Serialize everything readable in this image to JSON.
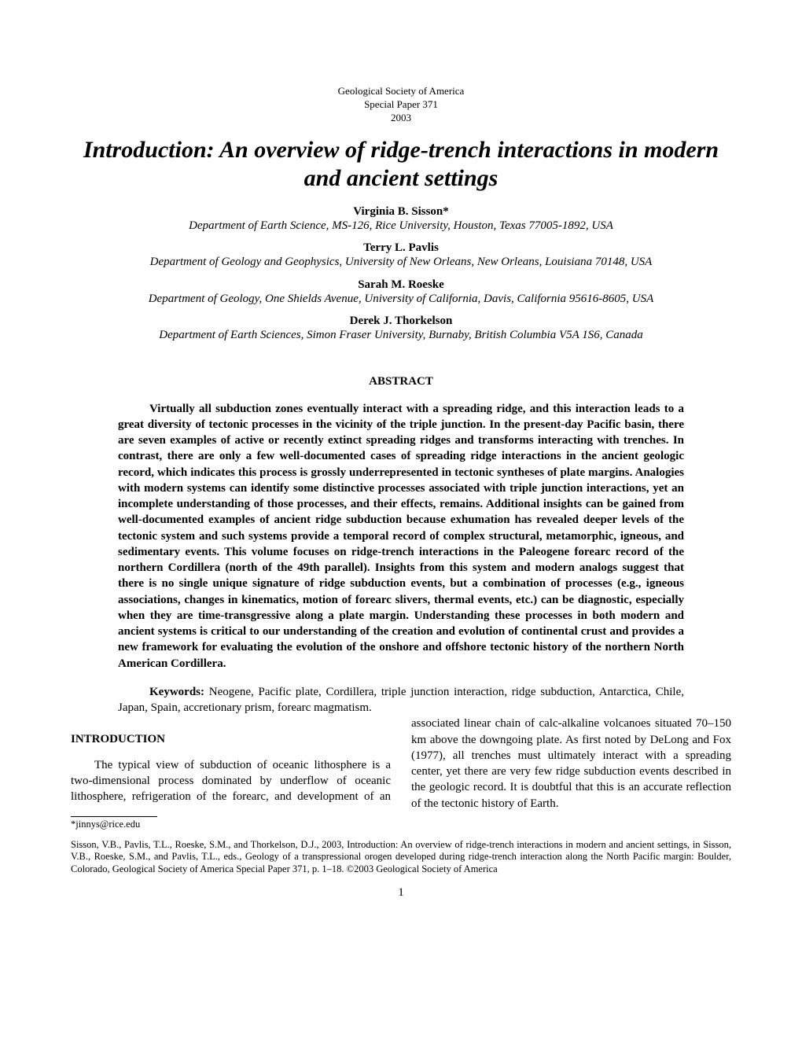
{
  "header": {
    "publisher": "Geological Society of America",
    "series": "Special Paper 371",
    "year": "2003"
  },
  "title": "Introduction: An overview of ridge-trench interactions in modern and ancient settings",
  "authors": [
    {
      "name": "Virginia B. Sisson*",
      "affiliation": "Department of Earth Science, MS-126, Rice University, Houston, Texas 77005-1892, USA"
    },
    {
      "name": "Terry L. Pavlis",
      "affiliation": "Department of Geology and Geophysics, University of New Orleans, New Orleans, Louisiana 70148, USA"
    },
    {
      "name": "Sarah M. Roeske",
      "affiliation": "Department of Geology, One Shields Avenue, University of California, Davis, California 95616-8605, USA"
    },
    {
      "name": "Derek J. Thorkelson",
      "affiliation": "Department of Earth Sciences, Simon Fraser University, Burnaby, British Columbia V5A 1S6, Canada"
    }
  ],
  "abstract": {
    "heading": "ABSTRACT",
    "body": "Virtually all subduction zones eventually interact with a spreading ridge, and this interaction leads to a great diversity of tectonic processes in the vicinity of the triple junction. In the present-day Pacific basin, there are seven examples of active or recently extinct spreading ridges and transforms interacting with trenches. In contrast, there are only a few well-documented cases of spreading ridge interactions in the ancient geologic record, which indicates this process is grossly underrepresented in tectonic syntheses of plate margins. Analogies with modern systems can identify some distinctive processes associated with triple junction interactions, yet an incomplete understanding of those processes, and their effects, remains. Additional insights can be gained from well-documented examples of ancient ridge subduction because exhumation has revealed deeper levels of the tectonic system and such systems provide a temporal record of complex structural, metamorphic, igneous, and sedimentary events. This volume focuses on ridge-trench interactions in the Paleogene forearc record of the northern Cordillera (north of the 49th parallel). Insights from this system and modern analogs suggest that there is no single unique signature of ridge subduction events, but a combination of processes (e.g., igneous associations, changes in kinematics, motion of forearc slivers, thermal events, etc.) can be diagnostic, especially when they are time-transgressive along a plate margin. Understanding these processes in both modern and ancient systems is critical to our understanding of the creation and evolution of continental crust and provides a new framework for evaluating the evolution of the onshore and offshore tectonic history of the northern North American Cordillera."
  },
  "keywords": {
    "label": "Keywords:",
    "text": " Neogene, Pacific plate, Cordillera, triple junction interaction, ridge subduction, Antarctica, Chile, Japan, Spain, accretionary prism, forearc magmatism."
  },
  "introduction": {
    "heading": "INTRODUCTION",
    "para1_left": "The typical view of subduction of oceanic lithosphere is a two-dimensional process dominated by underflow of oceanic lithosphere, refrigeration of the forearc, and development of",
    "para1_right": "an associated linear chain of calc-alkaline volcanoes situated 70–150 km above the downgoing plate. As first noted by DeLong and Fox (1977), all trenches must ultimately interact with a spreading center, yet there are very few ridge subduction events described in the geologic record. It is doubtful that this is an accurate reflection of the tectonic history of Earth."
  },
  "footnote": "*jinnys@rice.edu",
  "citation": "Sisson, V.B., Pavlis, T.L., Roeske, S.M., and Thorkelson, D.J., 2003, Introduction: An overview of ridge-trench interactions in modern and ancient settings, in Sisson, V.B., Roeske, S.M., and Pavlis, T.L., eds., Geology of a transpressional orogen developed during ridge-trench interaction along the North Pacific margin: Boulder, Colorado, Geological Society of America Special Paper 371, p. 1–18. ©2003 Geological Society of America",
  "page_number": "1"
}
